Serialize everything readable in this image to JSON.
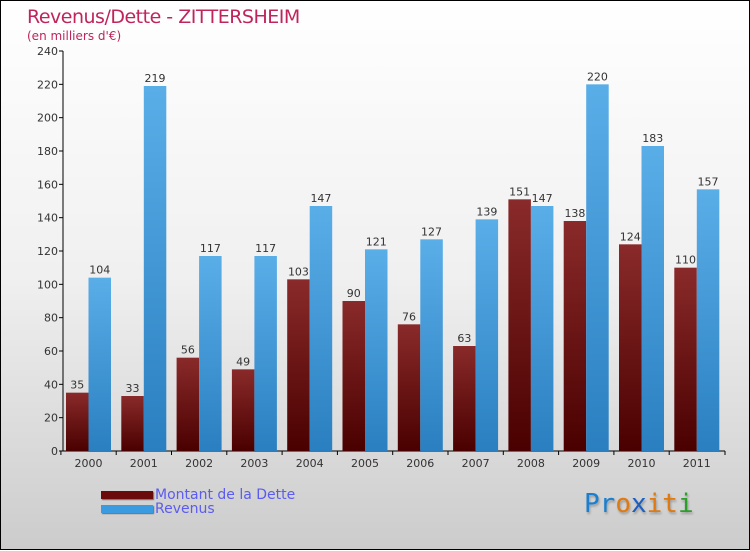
{
  "chart_data": {
    "type": "bar",
    "title": "Revenus/Dette - ZITTERSHEIM",
    "subtitle": "(en milliers d'€)",
    "categories": [
      "2000",
      "2001",
      "2002",
      "2003",
      "2004",
      "2005",
      "2006",
      "2007",
      "2008",
      "2009",
      "2010",
      "2011"
    ],
    "series": [
      {
        "name": "Montant de la Dette",
        "color": "#6b0a0a",
        "values": [
          35,
          33,
          56,
          49,
          103,
          90,
          76,
          63,
          151,
          138,
          124,
          110
        ]
      },
      {
        "name": "Revenus",
        "color": "#3a9be0",
        "values": [
          104,
          219,
          117,
          117,
          147,
          121,
          127,
          139,
          147,
          220,
          183,
          157
        ]
      }
    ],
    "ylim": [
      0,
      240
    ],
    "yticks": [
      0,
      20,
      40,
      60,
      80,
      100,
      120,
      140,
      160,
      180,
      200,
      220,
      240
    ],
    "legend": "bottom-left",
    "grid": false
  },
  "logo": {
    "text": "Proxiti",
    "letters": [
      "P",
      "r",
      "o",
      "x",
      "i",
      "t",
      "i"
    ],
    "colors": [
      "#1a7fd0",
      "#1a7fd0",
      "#e07a10",
      "#1a5fc0",
      "#e07a10",
      "#e07a10",
      "#2aa02a"
    ]
  }
}
